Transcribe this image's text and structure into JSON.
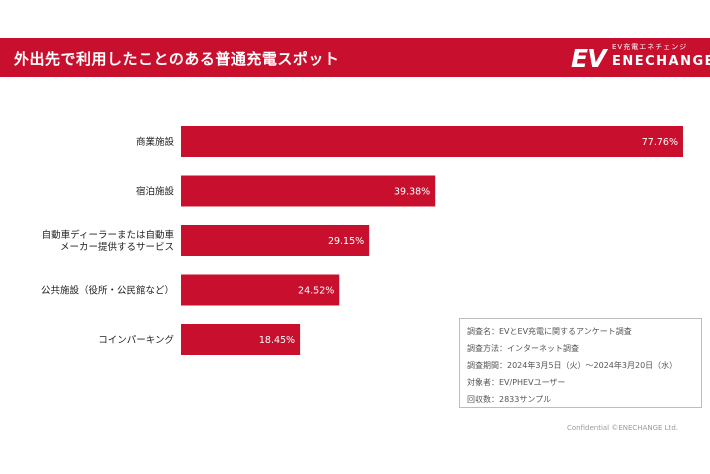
{
  "header": {
    "title": "外出先で利用したことのある普通充電スポット",
    "logo_mark": "EV",
    "logo_sub": "EV充電エネチェンジ",
    "logo_name": "ENECHANGE"
  },
  "colors": {
    "accent": "#c8102e",
    "bar": "#c8102e"
  },
  "chart_data": {
    "type": "bar",
    "orientation": "horizontal",
    "categories": [
      [
        "商業施設"
      ],
      [
        "宿泊施設"
      ],
      [
        "自動車ディーラーまたは自動車",
        "メーカー提供するサービス"
      ],
      [
        "公共施設（役所・公民館など）"
      ],
      [
        "コインパーキング"
      ]
    ],
    "values": [
      77.76,
      39.38,
      29.15,
      24.52,
      18.45
    ],
    "value_labels": [
      "77.76%",
      "39.38%",
      "29.15%",
      "24.52%",
      "18.45%"
    ],
    "xlim": [
      0,
      80
    ],
    "grid": false,
    "title": "",
    "xlabel": "",
    "ylabel": ""
  },
  "survey_notes": [
    "調査名：EVとEV充電に関するアンケート調査",
    "調査方法：インターネット調査",
    "調査期間：2024年3月5日（火）〜2024年3月20日（水）",
    "対象者：EV/PHEVユーザー",
    "回収数：2833サンプル"
  ],
  "footer": {
    "confidential": "Confidential ©ENECHANGE Ltd."
  }
}
